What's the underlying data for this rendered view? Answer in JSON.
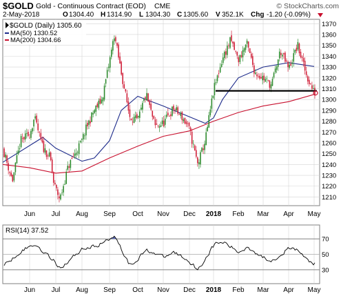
{
  "header": {
    "ticker": "$GOLD",
    "description": "Gold - Continuous Contract (EOD)",
    "exchange": "CME",
    "copyright": "© StockCharts.com",
    "date": "2-May-2018",
    "quote": {
      "open_label": "O",
      "open": "1304.40",
      "high_label": "H",
      "high": "1314.90",
      "low_label": "L",
      "low": "1304.30",
      "close_label": "C",
      "close": "1305.60",
      "volume_label": "V",
      "volume": "352.1K",
      "change_label": "Chg",
      "change": "-1.20 (-0.09%)"
    }
  },
  "legend": {
    "price": "$GOLD (Daily) 1305.60",
    "ma50": "MA(50) 1330.52",
    "ma200": "MA(200) 1304.66"
  },
  "colors": {
    "up_candle": "#2d8a2d",
    "down_candle": "#d0213a",
    "ma50": "#1c2a8a",
    "ma200": "#c8102e",
    "support_line": "#000000",
    "grid": "#d4d4d4",
    "rsi_line": "#000000",
    "rsi_band": "#808080",
    "rsi_fill_overbought": "#5b6bb8",
    "rsi_fill_oversold": "#b83a4e",
    "down_marker": "#c8102e"
  },
  "rsi_label": "RSI(14) 37.52",
  "chart_data": [
    {
      "type": "candlestick",
      "title": "$GOLD (Daily) 1305.60",
      "x_tick_labels": [
        "Jun",
        "Jul",
        "Aug",
        "Sep",
        "Oct",
        "Nov",
        "Dec",
        "2018",
        "Feb",
        "Mar",
        "Apr",
        "May"
      ],
      "y_tick_labels": [
        "1210",
        "1220",
        "1230",
        "1240",
        "1250",
        "1260",
        "1270",
        "1280",
        "1290",
        "1300",
        "1310",
        "1320",
        "1330",
        "1340",
        "1350",
        "1360",
        "1370"
      ],
      "ylim": [
        1202,
        1374
      ],
      "grid": true,
      "legend_position": "top-left",
      "anchors": [
        {
          "label": "May-2017",
          "close": 1255
        },
        {
          "label": "mid-May",
          "close": 1225
        },
        {
          "label": "late-May",
          "close": 1262
        },
        {
          "label": "Jun",
          "close": 1268
        },
        {
          "label": "early-Jun",
          "close": 1283
        },
        {
          "label": "mid-Jun",
          "close": 1256
        },
        {
          "label": "late-Jun",
          "close": 1246
        },
        {
          "label": "early-Jul",
          "close": 1222
        },
        {
          "label": "mid-Jul",
          "close": 1208
        },
        {
          "label": "late-Jul",
          "close": 1238
        },
        {
          "label": "Aug",
          "close": 1262
        },
        {
          "label": "early-Aug",
          "close": 1275
        },
        {
          "label": "mid-Aug",
          "close": 1290
        },
        {
          "label": "late-Aug",
          "close": 1300
        },
        {
          "label": "Sep",
          "close": 1335
        },
        {
          "label": "early-Sep",
          "close": 1360
        },
        {
          "label": "mid-Sep",
          "close": 1325
        },
        {
          "label": "late-Sep",
          "close": 1285
        },
        {
          "label": "Oct",
          "close": 1280
        },
        {
          "label": "mid-Oct",
          "close": 1305
        },
        {
          "label": "late-Oct",
          "close": 1275
        },
        {
          "label": "Nov",
          "close": 1278
        },
        {
          "label": "mid-Nov",
          "close": 1292
        },
        {
          "label": "late-Nov",
          "close": 1283
        },
        {
          "label": "Dec",
          "close": 1272
        },
        {
          "label": "mid-Dec",
          "close": 1240
        },
        {
          "label": "late-Dec",
          "close": 1262
        },
        {
          "label": "2018",
          "close": 1308
        },
        {
          "label": "mid-Jan",
          "close": 1338
        },
        {
          "label": "late-Jan",
          "close": 1355
        },
        {
          "label": "Feb",
          "close": 1336
        },
        {
          "label": "mid-Feb",
          "close": 1352
        },
        {
          "label": "late-Feb",
          "close": 1325
        },
        {
          "label": "Mar",
          "close": 1320
        },
        {
          "label": "mid-Mar",
          "close": 1313
        },
        {
          "label": "late-Mar",
          "close": 1345
        },
        {
          "label": "Apr",
          "close": 1328
        },
        {
          "label": "mid-Apr",
          "close": 1350
        },
        {
          "label": "late-Apr",
          "close": 1322
        },
        {
          "label": "May",
          "close": 1306
        }
      ],
      "ma50": [
        {
          "label": "May-2017",
          "value": 1242
        },
        {
          "label": "mid-Jun",
          "value": 1265
        },
        {
          "label": "Jul",
          "value": 1255
        },
        {
          "label": "Aug",
          "value": 1243
        },
        {
          "label": "mid-Aug",
          "value": 1246
        },
        {
          "label": "Sep",
          "value": 1262
        },
        {
          "label": "mid-Sep",
          "value": 1290
        },
        {
          "label": "Oct",
          "value": 1303
        },
        {
          "label": "mid-Oct",
          "value": 1300
        },
        {
          "label": "Nov",
          "value": 1294
        },
        {
          "label": "Dec",
          "value": 1284
        },
        {
          "label": "late-Dec",
          "value": 1278
        },
        {
          "label": "2018",
          "value": 1283
        },
        {
          "label": "mid-Jan",
          "value": 1300
        },
        {
          "label": "Feb",
          "value": 1320
        },
        {
          "label": "Mar",
          "value": 1330
        },
        {
          "label": "Apr",
          "value": 1334
        },
        {
          "label": "May",
          "value": 1330.52
        }
      ],
      "ma200": [
        {
          "label": "May-2017",
          "value": 1240
        },
        {
          "label": "Jun",
          "value": 1237
        },
        {
          "label": "Jul",
          "value": 1232
        },
        {
          "label": "Aug",
          "value": 1234
        },
        {
          "label": "Sep",
          "value": 1246
        },
        {
          "label": "Oct",
          "value": 1257
        },
        {
          "label": "Nov",
          "value": 1266
        },
        {
          "label": "Dec",
          "value": 1271
        },
        {
          "label": "2018",
          "value": 1280
        },
        {
          "label": "Feb",
          "value": 1288
        },
        {
          "label": "Mar",
          "value": 1294
        },
        {
          "label": "Apr",
          "value": 1298
        },
        {
          "label": "May",
          "value": 1304.66
        }
      ],
      "support_line": {
        "value": 1308,
        "from": "2018",
        "to": "May"
      }
    },
    {
      "type": "line",
      "title": "RSI(14) 37.52",
      "y_tick_labels": [
        "30",
        "50",
        "70"
      ],
      "ylim": [
        12,
        88
      ],
      "bands": [
        30,
        50,
        70
      ],
      "anchors": [
        {
          "label": "May-2017",
          "value": 35
        },
        {
          "label": "late-May",
          "value": 55
        },
        {
          "label": "early-Jun",
          "value": 63
        },
        {
          "label": "late-Jun",
          "value": 45
        },
        {
          "label": "mid-Jul",
          "value": 32
        },
        {
          "label": "Aug",
          "value": 58
        },
        {
          "label": "mid-Aug",
          "value": 60
        },
        {
          "label": "Sep",
          "value": 70
        },
        {
          "label": "early-Sep",
          "value": 76
        },
        {
          "label": "mid-Sep",
          "value": 55
        },
        {
          "label": "late-Sep",
          "value": 35
        },
        {
          "label": "mid-Oct",
          "value": 56
        },
        {
          "label": "Nov",
          "value": 46
        },
        {
          "label": "mid-Nov",
          "value": 53
        },
        {
          "label": "Dec",
          "value": 40
        },
        {
          "label": "mid-Dec",
          "value": 30
        },
        {
          "label": "2018",
          "value": 63
        },
        {
          "label": "mid-Jan",
          "value": 66
        },
        {
          "label": "Feb",
          "value": 52
        },
        {
          "label": "mid-Feb",
          "value": 60
        },
        {
          "label": "Mar",
          "value": 45
        },
        {
          "label": "mid-Mar",
          "value": 42
        },
        {
          "label": "Apr",
          "value": 58
        },
        {
          "label": "mid-Apr",
          "value": 55
        },
        {
          "label": "late-Apr",
          "value": 42
        },
        {
          "label": "May",
          "value": 37.52
        }
      ]
    }
  ]
}
